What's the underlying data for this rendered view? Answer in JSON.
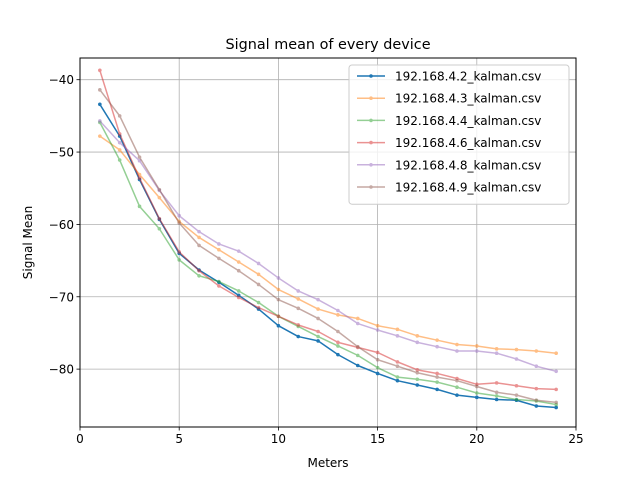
{
  "chart_data": {
    "type": "line",
    "title": "Signal mean of every device",
    "xlabel": "Meters",
    "ylabel": "Signal Mean",
    "xlim": [
      0,
      25
    ],
    "ylim": [
      -88,
      -37
    ],
    "xticks": [
      0,
      5,
      10,
      15,
      20,
      25
    ],
    "yticks": [
      -80,
      -70,
      -60,
      -50,
      -40
    ],
    "grid": true,
    "legend_position": "top-right",
    "x": [
      1,
      2,
      3,
      4,
      5,
      6,
      7,
      8,
      9,
      10,
      11,
      12,
      13,
      14,
      15,
      16,
      17,
      18,
      19,
      20,
      21,
      22,
      23,
      24
    ],
    "series": [
      {
        "name": "192.168.4.2_kalman.csv",
        "color": "#1f77b4",
        "opacity": 1.0,
        "values": [
          -43.4,
          -47.8,
          -53.8,
          -59.3,
          -64.0,
          -66.3,
          -68.0,
          -69.8,
          -71.7,
          -74.0,
          -75.5,
          -76.1,
          -78.0,
          -79.5,
          -80.6,
          -81.6,
          -82.2,
          -82.8,
          -83.6,
          -83.9,
          -84.2,
          -84.3,
          -85.1,
          -85.3
        ]
      },
      {
        "name": "192.168.4.3_kalman.csv",
        "color": "#ff7f0e",
        "opacity": 0.5,
        "values": [
          -47.8,
          -49.7,
          -53.1,
          -56.3,
          -59.6,
          -61.8,
          -63.5,
          -65.2,
          -66.9,
          -69.0,
          -70.3,
          -71.7,
          -72.5,
          -73.0,
          -74.0,
          -74.5,
          -75.4,
          -76.0,
          -76.6,
          -76.8,
          -77.2,
          -77.3,
          -77.5,
          -77.8
        ]
      },
      {
        "name": "192.168.4.4_kalman.csv",
        "color": "#2ca02c",
        "opacity": 0.5,
        "values": [
          -45.9,
          -51.1,
          -57.5,
          -60.6,
          -64.9,
          -67.1,
          -67.9,
          -69.2,
          -70.8,
          -72.7,
          -74.1,
          -75.5,
          -76.8,
          -78.1,
          -79.8,
          -81.1,
          -81.4,
          -81.8,
          -82.5,
          -83.3,
          -83.7,
          -84.2,
          -84.4,
          -84.9
        ]
      },
      {
        "name": "192.168.4.6_kalman.csv",
        "color": "#d62728",
        "opacity": 0.5,
        "values": [
          -38.7,
          -47.5,
          -53.6,
          -59.2,
          -63.8,
          -66.4,
          -68.5,
          -70.1,
          -71.5,
          -72.7,
          -73.9,
          -74.8,
          -76.3,
          -77.0,
          -77.7,
          -79.0,
          -80.1,
          -80.6,
          -81.3,
          -82.1,
          -81.9,
          -82.3,
          -82.7,
          -82.8
        ]
      },
      {
        "name": "192.168.4.8_kalman.csv",
        "color": "#9467bd",
        "opacity": 0.5,
        "values": [
          -45.7,
          -48.7,
          -51.2,
          -55.3,
          -58.8,
          -61.0,
          -62.7,
          -63.7,
          -65.4,
          -67.4,
          -69.2,
          -70.4,
          -71.9,
          -73.7,
          -74.6,
          -75.4,
          -76.3,
          -76.9,
          -77.5,
          -77.5,
          -77.8,
          -78.6,
          -79.6,
          -80.3
        ]
      },
      {
        "name": "192.168.4.9_kalman.csv",
        "color": "#8c564b",
        "opacity": 0.5,
        "values": [
          -41.4,
          -45.0,
          -50.7,
          -55.2,
          -59.8,
          -62.9,
          -64.7,
          -66.4,
          -68.3,
          -70.4,
          -71.6,
          -73.0,
          -74.8,
          -76.9,
          -78.7,
          -79.6,
          -80.5,
          -81.1,
          -81.6,
          -82.4,
          -83.2,
          -83.6,
          -84.3,
          -84.6
        ]
      }
    ]
  }
}
